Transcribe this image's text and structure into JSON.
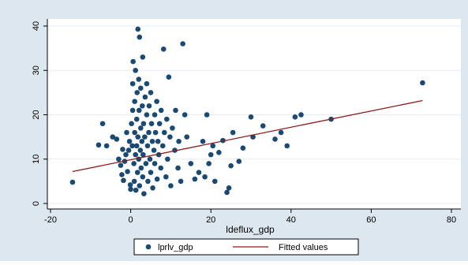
{
  "chart_data": {
    "type": "scatter",
    "xlabel": "ldeflux_gdp",
    "ylabel": "",
    "xlim": [
      -20,
      80
    ],
    "ylim": [
      0,
      40
    ],
    "xticks": [
      -20,
      0,
      20,
      40,
      60,
      80
    ],
    "yticks": [
      0,
      10,
      20,
      30,
      40
    ],
    "grid": "horizontal",
    "legend": "bottom",
    "background_color": "#dde7ef",
    "plot_color": "#ffffff",
    "series": [
      {
        "name": "lprlv_gdp",
        "kind": "scatter",
        "color": "#1a4a73",
        "points": [
          [
            -14.5,
            4.8
          ],
          [
            -8,
            13.2
          ],
          [
            -7,
            18
          ],
          [
            -6,
            13
          ],
          [
            -4.5,
            15
          ],
          [
            -3.5,
            14.5
          ],
          [
            -3,
            10
          ],
          [
            -2.5,
            8.6
          ],
          [
            -2.2,
            6.5
          ],
          [
            -2,
            12.2
          ],
          [
            -1.8,
            5.2
          ],
          [
            -1.5,
            9.5
          ],
          [
            -1.2,
            11
          ],
          [
            -1,
            16
          ],
          [
            -0.8,
            7.2
          ],
          [
            -0.5,
            12
          ],
          [
            -0.3,
            14
          ],
          [
            -0.1,
            4.2
          ],
          [
            0,
            3.2
          ],
          [
            0.2,
            18
          ],
          [
            0.4,
            13
          ],
          [
            0.5,
            21
          ],
          [
            0.5,
            27
          ],
          [
            0.6,
            32
          ],
          [
            0.8,
            9
          ],
          [
            0.9,
            5
          ],
          [
            1,
            16
          ],
          [
            1,
            23
          ],
          [
            1.2,
            11
          ],
          [
            1.2,
            30
          ],
          [
            1.3,
            3
          ],
          [
            1.5,
            13
          ],
          [
            1.5,
            19
          ],
          [
            1.6,
            25
          ],
          [
            1.7,
            7
          ],
          [
            1.8,
            39.3
          ],
          [
            1.8,
            15
          ],
          [
            2,
            10
          ],
          [
            2,
            28
          ],
          [
            2.1,
            21
          ],
          [
            2.2,
            37.5
          ],
          [
            2.2,
            4
          ],
          [
            2.4,
            12
          ],
          [
            2.5,
            17
          ],
          [
            2.5,
            26
          ],
          [
            2.6,
            8
          ],
          [
            2.8,
            14
          ],
          [
            2.9,
            22
          ],
          [
            3,
            6
          ],
          [
            3,
            33
          ],
          [
            3.1,
            11
          ],
          [
            3.2,
            18
          ],
          [
            3.3,
            2.2
          ],
          [
            3.5,
            15
          ],
          [
            3.6,
            24
          ],
          [
            3.8,
            9
          ],
          [
            4,
            20
          ],
          [
            4,
            27
          ],
          [
            4.2,
            13
          ],
          [
            4.3,
            5
          ],
          [
            4.5,
            16
          ],
          [
            4.6,
            22
          ],
          [
            4.8,
            10
          ],
          [
            5,
            25
          ],
          [
            5,
            7
          ],
          [
            5.2,
            18
          ],
          [
            5.4,
            14
          ],
          [
            5.5,
            3.5
          ],
          [
            5.8,
            12
          ],
          [
            6,
            20
          ],
          [
            6,
            9
          ],
          [
            6.2,
            16
          ],
          [
            6.5,
            23
          ],
          [
            6.6,
            5.5
          ],
          [
            6.8,
            14
          ],
          [
            7,
            11
          ],
          [
            7.2,
            18
          ],
          [
            7.5,
            8
          ],
          [
            7.6,
            21
          ],
          [
            8,
            13
          ],
          [
            8.2,
            34.8
          ],
          [
            8.4,
            16
          ],
          [
            8.8,
            6
          ],
          [
            9,
            19
          ],
          [
            9.2,
            10
          ],
          [
            9.5,
            28.5
          ],
          [
            9.8,
            15
          ],
          [
            10,
            4
          ],
          [
            10.4,
            17
          ],
          [
            11,
            12
          ],
          [
            11.2,
            21
          ],
          [
            11.8,
            8
          ],
          [
            12,
            14
          ],
          [
            12.5,
            5
          ],
          [
            13,
            36
          ],
          [
            13.5,
            20
          ],
          [
            14,
            15
          ],
          [
            15,
            9
          ],
          [
            16,
            5.5
          ],
          [
            17,
            7
          ],
          [
            18,
            14
          ],
          [
            18.5,
            6
          ],
          [
            19,
            20
          ],
          [
            19.5,
            9
          ],
          [
            20,
            11
          ],
          [
            20.5,
            13
          ],
          [
            21,
            5
          ],
          [
            22,
            11.5
          ],
          [
            23,
            14.2
          ],
          [
            24,
            2.5
          ],
          [
            24.5,
            3.5
          ],
          [
            25,
            8.5
          ],
          [
            25.5,
            16
          ],
          [
            27,
            9.5
          ],
          [
            28,
            12.5
          ],
          [
            30,
            19.5
          ],
          [
            30.5,
            15
          ],
          [
            33,
            17.5
          ],
          [
            36,
            14.5
          ],
          [
            37.5,
            16
          ],
          [
            39,
            13
          ],
          [
            41,
            19.5
          ],
          [
            42.5,
            20
          ],
          [
            50,
            19
          ],
          [
            72.8,
            27.2
          ]
        ]
      },
      {
        "name": "Fitted values",
        "kind": "line",
        "color": "#8b1a1a",
        "points": [
          [
            -14.5,
            7.2
          ],
          [
            72.8,
            23.2
          ]
        ]
      }
    ]
  }
}
